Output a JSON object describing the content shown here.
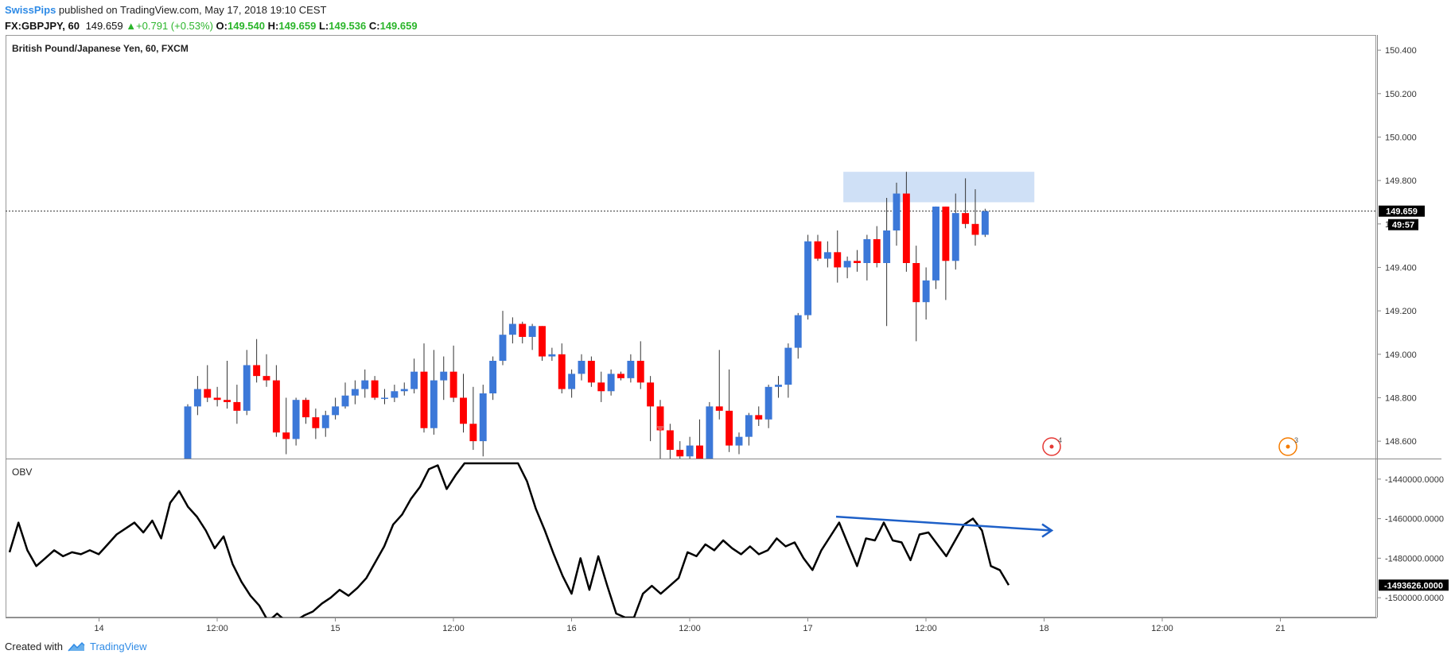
{
  "header": {
    "author": "SwissPips",
    "published": " published on TradingView.com, May 17, 2018 19:10 CEST",
    "symbol": "FX:GBPJPY, 60",
    "last": "149.659",
    "change": "+0.791 (+0.53%)",
    "o_label": "O:",
    "o": "149.540",
    "h_label": "H:",
    "h": "149.659",
    "l_label": "L:",
    "l": "149.536",
    "c_label": "C:",
    "c": "149.659"
  },
  "chart_title": "British Pound/Japanese Yen, 60, FXCM",
  "indicator_label": "OBV",
  "price_tag": "149.659",
  "countdown_tag": "49:57",
  "obv_tag": "-1493626.0000",
  "event_badges": [
    "4",
    "3"
  ],
  "footer": {
    "created_with": "Created with",
    "brand": "TradingView"
  },
  "colors": {
    "up": "#3c78d8",
    "down": "#ff0000",
    "zone": "#cfe0f6",
    "arrow": "#1e60c8",
    "obv_line": "#000000",
    "link": "#2f8be6"
  },
  "chart_data": [
    {
      "type": "candlestick",
      "title": "British Pound/Japanese Yen, 60, FXCM",
      "ylim": [
        148.52,
        150.47
      ],
      "yticks": [
        150.4,
        150.2,
        150.0,
        149.8,
        149.6,
        149.4,
        149.2,
        149.0,
        148.8,
        148.6
      ],
      "ytick_labels": [
        "150.400",
        "150.200",
        "150.000",
        "149.800",
        "149.600",
        "149.400",
        "149.200",
        "149.000",
        "148.800",
        "148.600"
      ],
      "xtick_labels": [
        "14",
        "12:00",
        "15",
        "12:00",
        "16",
        "12:00",
        "17",
        "12:00",
        "18",
        "12:00",
        "21"
      ],
      "current_price": 149.659,
      "resistance_zone": [
        149.7,
        149.84
      ],
      "candles": [
        {
          "o": 148.52,
          "h": 148.77,
          "l": 148.4,
          "c": 148.76
        },
        {
          "o": 148.76,
          "h": 148.9,
          "l": 148.72,
          "c": 148.84
        },
        {
          "o": 148.84,
          "h": 148.95,
          "l": 148.78,
          "c": 148.8
        },
        {
          "o": 148.8,
          "h": 148.85,
          "l": 148.76,
          "c": 148.79
        },
        {
          "o": 148.79,
          "h": 148.97,
          "l": 148.75,
          "c": 148.78
        },
        {
          "o": 148.78,
          "h": 148.86,
          "l": 148.68,
          "c": 148.74
        },
        {
          "o": 148.74,
          "h": 149.02,
          "l": 148.72,
          "c": 148.95
        },
        {
          "o": 148.95,
          "h": 149.07,
          "l": 148.87,
          "c": 148.9
        },
        {
          "o": 148.9,
          "h": 149.0,
          "l": 148.85,
          "c": 148.88
        },
        {
          "o": 148.88,
          "h": 148.95,
          "l": 148.62,
          "c": 148.64
        },
        {
          "o": 148.64,
          "h": 148.8,
          "l": 148.54,
          "c": 148.61
        },
        {
          "o": 148.61,
          "h": 148.8,
          "l": 148.58,
          "c": 148.79
        },
        {
          "o": 148.79,
          "h": 148.8,
          "l": 148.68,
          "c": 148.71
        },
        {
          "o": 148.71,
          "h": 148.75,
          "l": 148.61,
          "c": 148.66
        },
        {
          "o": 148.66,
          "h": 148.74,
          "l": 148.62,
          "c": 148.72
        },
        {
          "o": 148.72,
          "h": 148.8,
          "l": 148.7,
          "c": 148.76
        },
        {
          "o": 148.76,
          "h": 148.87,
          "l": 148.75,
          "c": 148.81
        },
        {
          "o": 148.81,
          "h": 148.88,
          "l": 148.77,
          "c": 148.84
        },
        {
          "o": 148.84,
          "h": 148.93,
          "l": 148.8,
          "c": 148.88
        },
        {
          "o": 148.88,
          "h": 148.9,
          "l": 148.79,
          "c": 148.8
        },
        {
          "o": 148.8,
          "h": 148.84,
          "l": 148.77,
          "c": 148.8
        },
        {
          "o": 148.8,
          "h": 148.86,
          "l": 148.78,
          "c": 148.83
        },
        {
          "o": 148.83,
          "h": 148.87,
          "l": 148.81,
          "c": 148.84
        },
        {
          "o": 148.84,
          "h": 148.98,
          "l": 148.82,
          "c": 148.92
        },
        {
          "o": 148.92,
          "h": 149.05,
          "l": 148.64,
          "c": 148.66
        },
        {
          "o": 148.66,
          "h": 149.02,
          "l": 148.63,
          "c": 148.88
        },
        {
          "o": 148.88,
          "h": 148.99,
          "l": 148.79,
          "c": 148.92
        },
        {
          "o": 148.92,
          "h": 149.04,
          "l": 148.78,
          "c": 148.8
        },
        {
          "o": 148.8,
          "h": 148.91,
          "l": 148.64,
          "c": 148.68
        },
        {
          "o": 148.68,
          "h": 148.85,
          "l": 148.56,
          "c": 148.6
        },
        {
          "o": 148.6,
          "h": 148.86,
          "l": 148.53,
          "c": 148.82
        },
        {
          "o": 148.82,
          "h": 148.99,
          "l": 148.79,
          "c": 148.97
        },
        {
          "o": 148.97,
          "h": 149.2,
          "l": 148.95,
          "c": 149.09
        },
        {
          "o": 149.09,
          "h": 149.17,
          "l": 149.05,
          "c": 149.14
        },
        {
          "o": 149.14,
          "h": 149.15,
          "l": 149.05,
          "c": 149.08
        },
        {
          "o": 149.08,
          "h": 149.14,
          "l": 149.02,
          "c": 149.13
        },
        {
          "o": 149.13,
          "h": 149.13,
          "l": 148.97,
          "c": 148.99
        },
        {
          "o": 148.99,
          "h": 149.03,
          "l": 148.97,
          "c": 149.0
        },
        {
          "o": 149.0,
          "h": 149.05,
          "l": 148.82,
          "c": 148.84
        },
        {
          "o": 148.84,
          "h": 148.93,
          "l": 148.8,
          "c": 148.91
        },
        {
          "o": 148.91,
          "h": 149.0,
          "l": 148.88,
          "c": 148.97
        },
        {
          "o": 148.97,
          "h": 148.99,
          "l": 148.85,
          "c": 148.87
        },
        {
          "o": 148.87,
          "h": 148.92,
          "l": 148.78,
          "c": 148.83
        },
        {
          "o": 148.83,
          "h": 148.93,
          "l": 148.81,
          "c": 148.91
        },
        {
          "o": 148.91,
          "h": 148.92,
          "l": 148.88,
          "c": 148.89
        },
        {
          "o": 148.89,
          "h": 149.0,
          "l": 148.87,
          "c": 148.97
        },
        {
          "o": 148.97,
          "h": 149.06,
          "l": 148.84,
          "c": 148.87
        },
        {
          "o": 148.87,
          "h": 148.9,
          "l": 148.6,
          "c": 148.76
        },
        {
          "o": 148.76,
          "h": 148.79,
          "l": 148.52,
          "c": 148.65
        },
        {
          "o": 148.65,
          "h": 148.68,
          "l": 148.51,
          "c": 148.56
        },
        {
          "o": 148.56,
          "h": 148.6,
          "l": 148.48,
          "c": 148.53
        },
        {
          "o": 148.53,
          "h": 148.62,
          "l": 148.5,
          "c": 148.58
        },
        {
          "o": 148.58,
          "h": 148.7,
          "l": 148.49,
          "c": 148.51
        },
        {
          "o": 148.51,
          "h": 148.78,
          "l": 148.49,
          "c": 148.76
        },
        {
          "o": 148.76,
          "h": 149.02,
          "l": 148.7,
          "c": 148.74
        },
        {
          "o": 148.74,
          "h": 148.93,
          "l": 148.55,
          "c": 148.58
        },
        {
          "o": 148.58,
          "h": 148.64,
          "l": 148.54,
          "c": 148.62
        },
        {
          "o": 148.62,
          "h": 148.73,
          "l": 148.58,
          "c": 148.72
        },
        {
          "o": 148.72,
          "h": 148.76,
          "l": 148.67,
          "c": 148.7
        },
        {
          "o": 148.7,
          "h": 148.86,
          "l": 148.66,
          "c": 148.85
        },
        {
          "o": 148.85,
          "h": 148.9,
          "l": 148.8,
          "c": 148.86
        },
        {
          "o": 148.86,
          "h": 149.05,
          "l": 148.8,
          "c": 149.03
        },
        {
          "o": 149.03,
          "h": 149.19,
          "l": 148.98,
          "c": 149.18
        },
        {
          "o": 149.18,
          "h": 149.55,
          "l": 149.16,
          "c": 149.52
        },
        {
          "o": 149.52,
          "h": 149.55,
          "l": 149.43,
          "c": 149.44
        },
        {
          "o": 149.44,
          "h": 149.52,
          "l": 149.4,
          "c": 149.47
        },
        {
          "o": 149.47,
          "h": 149.57,
          "l": 149.33,
          "c": 149.4
        },
        {
          "o": 149.4,
          "h": 149.45,
          "l": 149.35,
          "c": 149.43
        },
        {
          "o": 149.43,
          "h": 149.48,
          "l": 149.38,
          "c": 149.42
        },
        {
          "o": 149.42,
          "h": 149.55,
          "l": 149.34,
          "c": 149.53
        },
        {
          "o": 149.53,
          "h": 149.59,
          "l": 149.4,
          "c": 149.42
        },
        {
          "o": 149.42,
          "h": 149.72,
          "l": 149.13,
          "c": 149.57
        },
        {
          "o": 149.57,
          "h": 149.79,
          "l": 149.5,
          "c": 149.74
        },
        {
          "o": 149.74,
          "h": 149.84,
          "l": 149.38,
          "c": 149.42
        },
        {
          "o": 149.42,
          "h": 149.5,
          "l": 149.06,
          "c": 149.24
        },
        {
          "o": 149.24,
          "h": 149.4,
          "l": 149.16,
          "c": 149.34
        },
        {
          "o": 149.34,
          "h": 149.68,
          "l": 149.3,
          "c": 149.68
        },
        {
          "o": 149.68,
          "h": 149.68,
          "l": 149.25,
          "c": 149.43
        },
        {
          "o": 149.43,
          "h": 149.74,
          "l": 149.39,
          "c": 149.65
        },
        {
          "o": 149.65,
          "h": 149.81,
          "l": 149.58,
          "c": 149.6
        },
        {
          "o": 149.6,
          "h": 149.76,
          "l": 149.5,
          "c": 149.55
        },
        {
          "o": 149.55,
          "h": 149.67,
          "l": 149.54,
          "c": 149.659
        }
      ]
    },
    {
      "type": "line",
      "title": "OBV",
      "ylim": [
        -1510000,
        -1430000
      ],
      "yticks": [
        -1440000,
        -1460000,
        -1480000,
        -1500000
      ],
      "ytick_labels": [
        "-1440000.0000",
        "-1460000.0000",
        "-1480000.0000",
        "-1500000.0000"
      ],
      "series": [
        {
          "values": [
            -1477000,
            -1462000,
            -1476000,
            -1484000,
            -1480000,
            -1476000,
            -1479000,
            -1477000,
            -1478000,
            -1476000,
            -1478000,
            -1473000,
            -1468000,
            -1465000,
            -1462000,
            -1467000,
            -1461000,
            -1470000,
            -1452000,
            -1446000,
            -1454000,
            -1459000,
            -1466000,
            -1475000,
            -1469000,
            -1483000,
            -1492000,
            -1499000,
            -1504000,
            -1512000,
            -1508000,
            -1512000,
            -1512000,
            -1509000,
            -1507000,
            -1503000,
            -1500000,
            -1496000,
            -1499000,
            -1495000,
            -1490000,
            -1482000,
            -1474000,
            -1463000,
            -1458000,
            -1450000,
            -1444000,
            -1435000,
            -1433000,
            -1445000,
            -1438000,
            -1432000,
            -1432000,
            -1432000,
            -1432000,
            -1432000,
            -1432000,
            -1432000,
            -1441000,
            -1455000,
            -1466000,
            -1478000,
            -1489000,
            -1498000,
            -1480000,
            -1496000,
            -1479000,
            -1494000,
            -1508000,
            -1510000,
            -1510000,
            -1498000,
            -1494000,
            -1498000,
            -1494000,
            -1490000,
            -1477000,
            -1479000,
            -1473000,
            -1476000,
            -1471000,
            -1475000,
            -1478000,
            -1474000,
            -1478000,
            -1476000,
            -1470000,
            -1474000,
            -1472000,
            -1480000,
            -1486000,
            -1476000,
            -1469000,
            -1462000,
            -1473000,
            -1484000,
            -1470000,
            -1471000,
            -1462000,
            -1471000,
            -1472000,
            -1481000,
            -1468000,
            -1467000,
            -1473000,
            -1479000,
            -1471000,
            -1463000,
            -1460000,
            -1466000,
            -1484000,
            -1486000,
            -1493626
          ]
        }
      ],
      "trend_arrow": {
        "from": -1459000,
        "to": -1466000
      },
      "current_value": -1493626
    }
  ]
}
